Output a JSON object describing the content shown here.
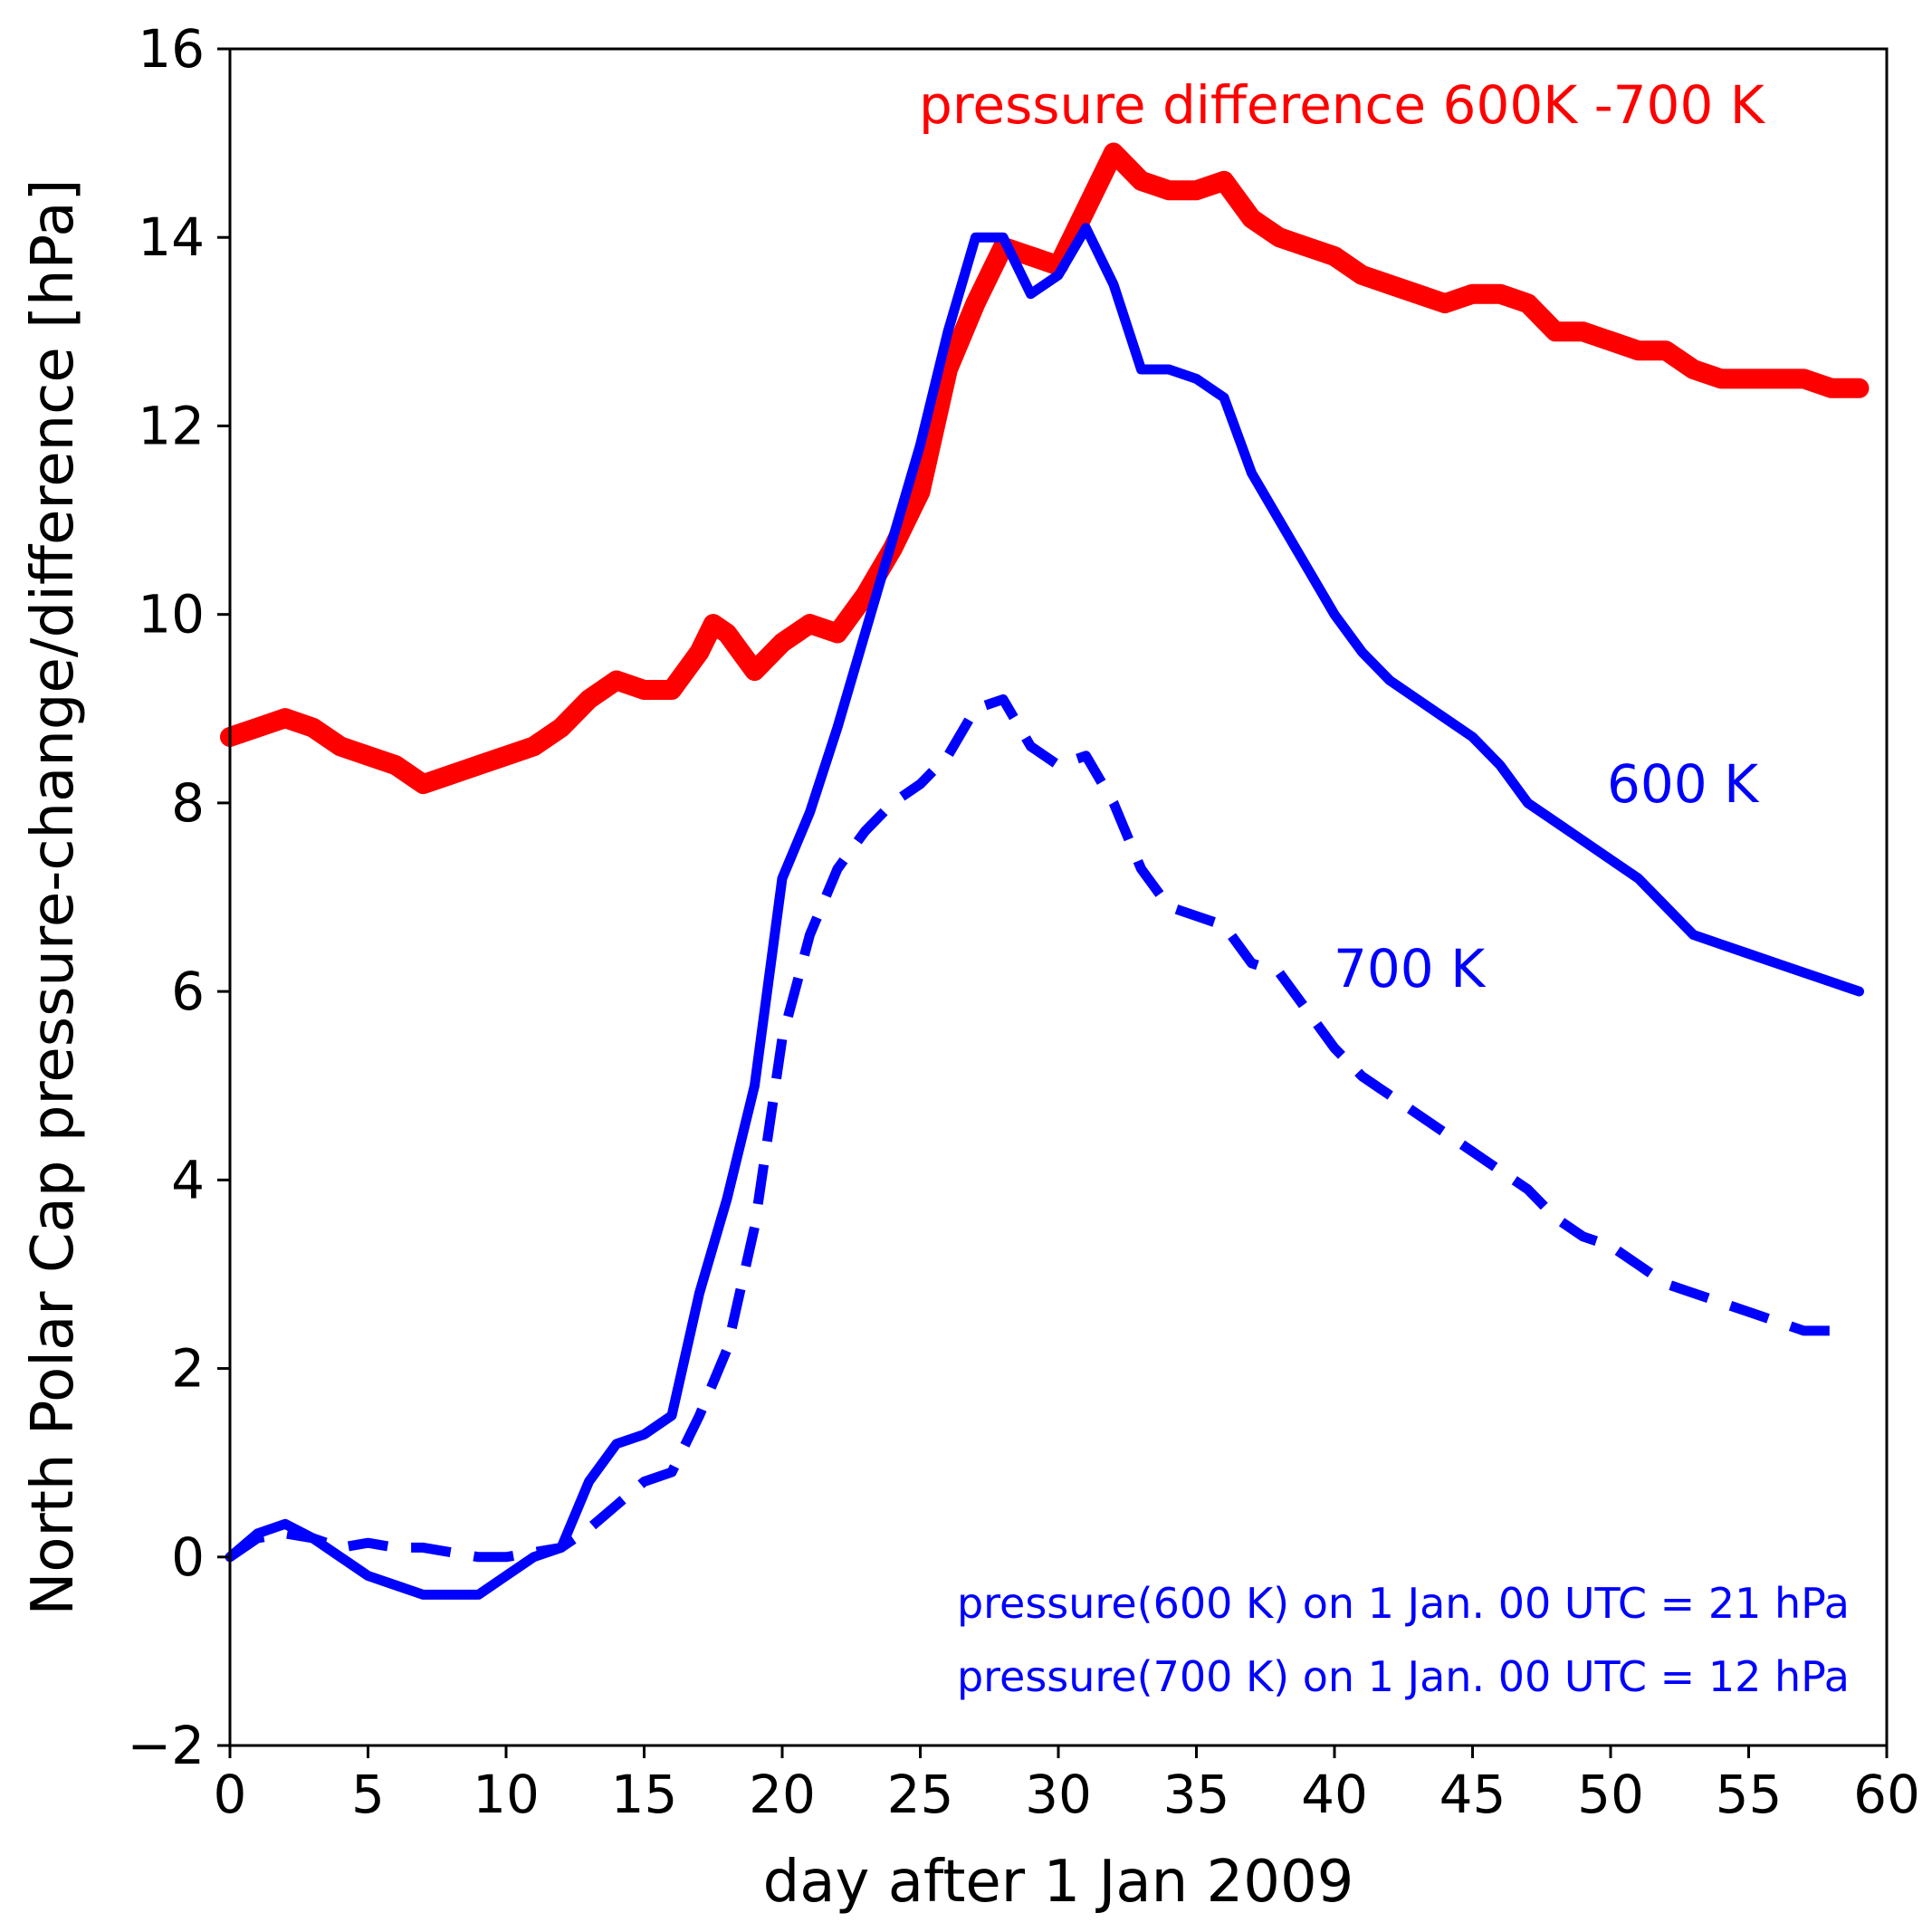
{
  "chart_data": {
    "type": "line",
    "title": "",
    "xlabel": "day after 1 Jan 2009",
    "ylabel": "North Polar Cap pressure-change/difference [hPa]",
    "xlim": [
      0,
      60
    ],
    "ylim": [
      -2,
      16
    ],
    "xticks": [
      0,
      5,
      10,
      15,
      20,
      25,
      30,
      35,
      40,
      45,
      50,
      55,
      60
    ],
    "yticks": [
      -2,
      0,
      2,
      4,
      6,
      8,
      10,
      12,
      14,
      16
    ],
    "ytick_labels": [
      "−2",
      "0",
      "2",
      "4",
      "6",
      "8",
      "10",
      "12",
      "14",
      "16"
    ],
    "grid": false,
    "series": [
      {
        "name": "pressure difference 600K -700 K",
        "color": "#ff0000",
        "style": "solid-thick",
        "x": [
          0,
          1,
          2,
          3,
          4,
          5,
          6,
          7,
          8,
          9,
          10,
          11,
          12,
          13,
          14,
          15,
          16,
          17,
          17.5,
          18,
          19,
          20,
          21,
          22,
          23,
          24,
          25,
          26,
          27,
          28,
          29,
          30,
          31,
          32,
          33,
          34,
          35,
          36,
          37,
          38,
          39,
          40,
          41,
          42,
          43,
          44,
          45,
          46,
          47,
          48,
          49,
          50,
          51,
          52,
          53,
          54,
          55,
          56,
          57,
          58,
          59
        ],
        "y": [
          8.7,
          8.8,
          8.9,
          8.8,
          8.6,
          8.5,
          8.4,
          8.2,
          8.3,
          8.4,
          8.5,
          8.6,
          8.8,
          9.1,
          9.3,
          9.2,
          9.2,
          9.6,
          9.9,
          9.8,
          9.4,
          9.7,
          9.9,
          9.8,
          10.2,
          10.7,
          11.3,
          12.6,
          13.3,
          13.9,
          13.8,
          13.7,
          14.3,
          14.9,
          14.6,
          14.5,
          14.5,
          14.6,
          14.2,
          14.0,
          13.9,
          13.8,
          13.6,
          13.5,
          13.4,
          13.3,
          13.4,
          13.4,
          13.3,
          13.0,
          13.0,
          12.9,
          12.8,
          12.8,
          12.6,
          12.5,
          12.5,
          12.5,
          12.5,
          12.4,
          12.4
        ]
      },
      {
        "name": "600 K",
        "color": "#0000ff",
        "style": "solid",
        "x": [
          0,
          1,
          2,
          3,
          4,
          5,
          6,
          7,
          8,
          9,
          10,
          11,
          12,
          13,
          14,
          15,
          16,
          17,
          18,
          19,
          20,
          21,
          22,
          23,
          24,
          25,
          26,
          27,
          28,
          29,
          30,
          31,
          32,
          33,
          34,
          35,
          36,
          37,
          38,
          39,
          40,
          41,
          42,
          43,
          44,
          45,
          46,
          47,
          48,
          49,
          50,
          51,
          52,
          53,
          54,
          55,
          56,
          57,
          58,
          59
        ],
        "y": [
          0.0,
          0.25,
          0.35,
          0.2,
          0.0,
          -0.2,
          -0.3,
          -0.4,
          -0.4,
          -0.4,
          -0.2,
          0.0,
          0.1,
          0.8,
          1.2,
          1.3,
          1.5,
          2.8,
          3.8,
          5.0,
          7.2,
          7.9,
          8.8,
          9.8,
          10.8,
          11.8,
          13.0,
          14.0,
          14.0,
          13.4,
          13.6,
          14.1,
          13.5,
          12.6,
          12.6,
          12.5,
          12.3,
          11.5,
          11.0,
          10.5,
          10.0,
          9.6,
          9.3,
          9.1,
          8.9,
          8.7,
          8.4,
          8.0,
          7.8,
          7.6,
          7.4,
          7.2,
          6.9,
          6.6,
          6.5,
          6.4,
          6.3,
          6.2,
          6.1,
          6.0
        ]
      },
      {
        "name": "700 K",
        "color": "#0000ff",
        "style": "dashed",
        "x": [
          0,
          1,
          2,
          3,
          4,
          5,
          6,
          7,
          8,
          9,
          10,
          11,
          12,
          13,
          14,
          15,
          16,
          17,
          18,
          19,
          20,
          21,
          22,
          23,
          24,
          25,
          26,
          27,
          28,
          29,
          30,
          31,
          32,
          33,
          34,
          35,
          36,
          37,
          38,
          39,
          40,
          41,
          42,
          43,
          44,
          45,
          46,
          47,
          48,
          49,
          50,
          51,
          52,
          53,
          54,
          55,
          56,
          57,
          58
        ],
        "y": [
          0.0,
          0.2,
          0.25,
          0.2,
          0.1,
          0.15,
          0.1,
          0.1,
          0.05,
          0.0,
          0.0,
          0.05,
          0.1,
          0.3,
          0.55,
          0.8,
          0.9,
          1.5,
          2.2,
          3.5,
          5.5,
          6.6,
          7.3,
          7.7,
          8.0,
          8.2,
          8.5,
          9.0,
          9.1,
          8.6,
          8.4,
          8.5,
          8.0,
          7.3,
          6.9,
          6.8,
          6.7,
          6.3,
          6.2,
          5.8,
          5.4,
          5.1,
          4.9,
          4.7,
          4.5,
          4.3,
          4.1,
          3.9,
          3.6,
          3.4,
          3.3,
          3.1,
          2.9,
          2.8,
          2.7,
          2.6,
          2.5,
          2.4,
          2.4
        ]
      }
    ],
    "annotations": {
      "diff_label": "pressure difference 600K -700 K",
      "label_600": "600 K",
      "label_700": "700 K",
      "note_600": "pressure(600 K) on 1 Jan. 00 UTC = 21 hPa",
      "note_700": "pressure(700 K) on 1 Jan. 00 UTC = 12 hPa"
    }
  }
}
